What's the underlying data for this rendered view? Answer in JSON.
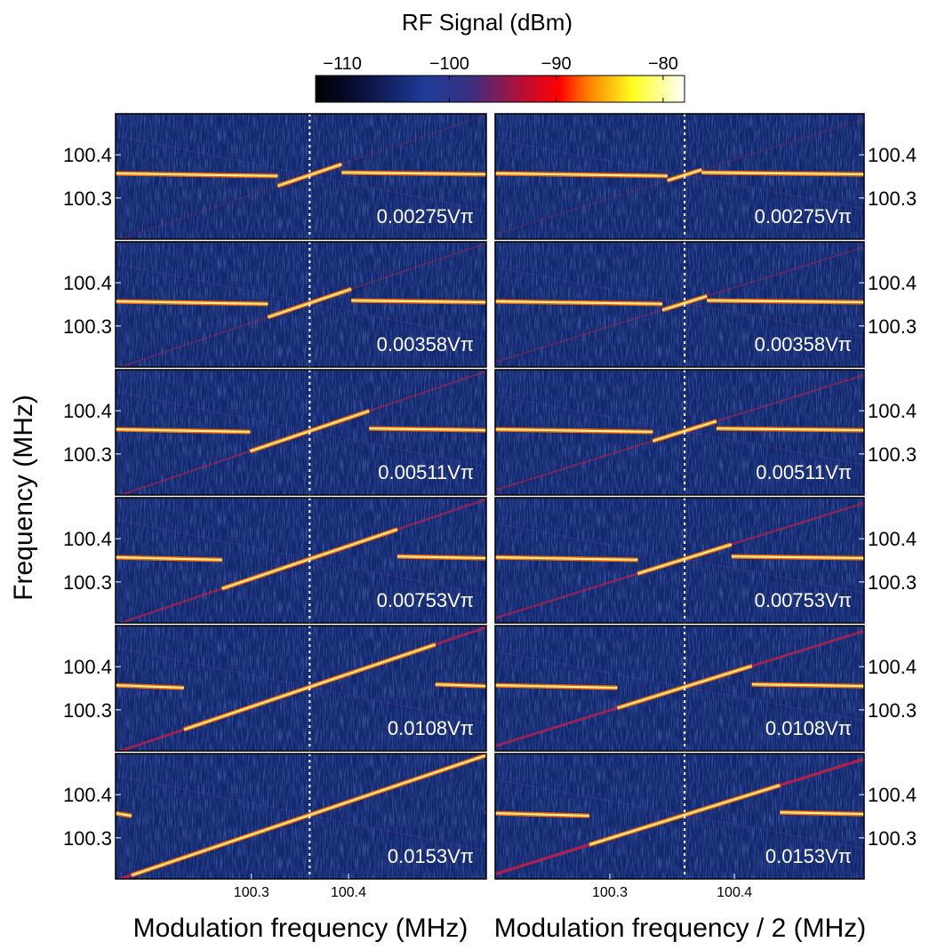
{
  "chart_data": {
    "type": "heatmap",
    "title": "RF Signal (dBm)",
    "colorbar": {
      "clim": [
        -112.5,
        -78
      ],
      "ticks": [
        {
          "value": -110,
          "label": "−110"
        },
        {
          "value": -100,
          "label": "−100"
        },
        {
          "value": -90,
          "label": "−90"
        },
        {
          "value": -80,
          "label": "−80"
        }
      ]
    },
    "ylabel": "Frequency (MHz)",
    "ylim": [
      100.205,
      100.495
    ],
    "yticks": [
      100.3,
      100.4
    ],
    "signal_y": 100.353,
    "marker_x": 100.36,
    "columns": [
      {
        "xlabel": "Modulation frequency (MHz)",
        "xlim": [
          100.16,
          100.542
        ],
        "xticks": [
          100.3,
          100.4
        ]
      },
      {
        "xlabel": "Modulation frequency / 2 (MHz)",
        "xlim": [
          100.208,
          100.504
        ],
        "xticks": [
          100.3,
          100.4
        ]
      }
    ],
    "panels": [
      {
        "label": "0.00275Vπ",
        "amplitude": 0.00275
      },
      {
        "label": "0.00358Vπ",
        "amplitude": 0.00358
      },
      {
        "label": "0.00511Vπ",
        "amplitude": 0.00511
      },
      {
        "label": "0.00753Vπ",
        "amplitude": 0.00753
      },
      {
        "label": "0.0108Vπ",
        "amplitude": 0.0108
      },
      {
        "label": "0.0153Vπ",
        "amplitude": 0.0153
      }
    ]
  }
}
